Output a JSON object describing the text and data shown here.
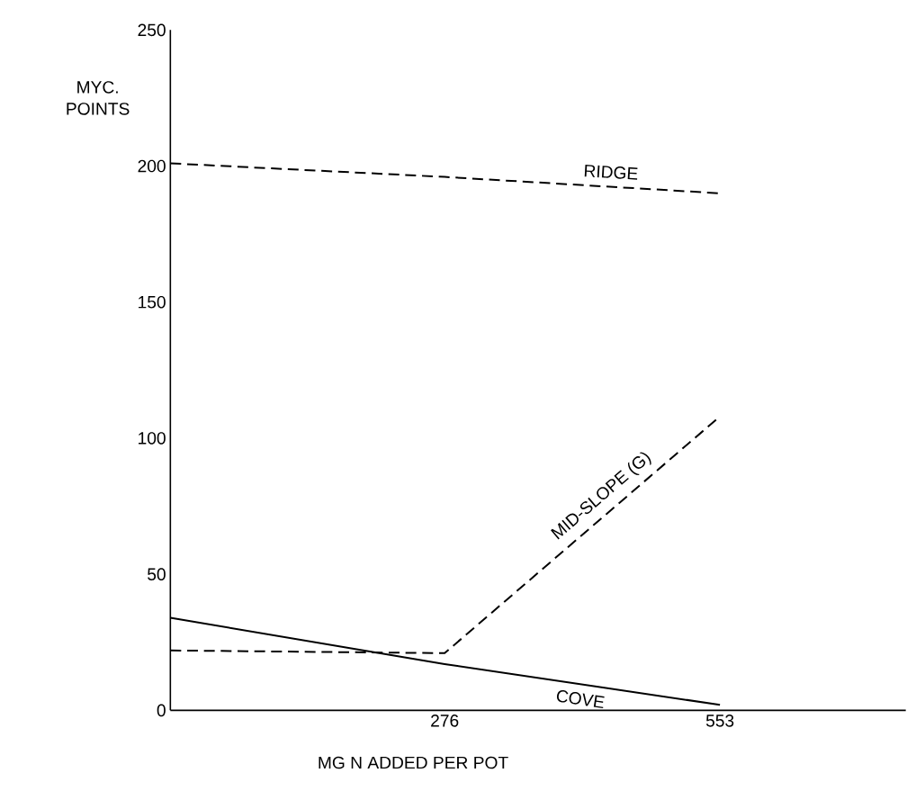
{
  "chart_data": {
    "type": "line",
    "xlabel": "MG  N  ADDED  PER POT",
    "ylabel": "MYC. POINTS",
    "x": [
      0,
      276,
      553
    ],
    "xlim": [
      0,
      740
    ],
    "ylim": [
      0,
      250
    ],
    "xticks": [
      276,
      553
    ],
    "yticks": [
      0,
      50,
      100,
      150,
      200,
      250
    ],
    "grid": false,
    "marker": "none",
    "series": [
      {
        "name": "RIDGE",
        "color": "#000000",
        "line_style": "dashed",
        "values": [
          201,
          196,
          190
        ]
      },
      {
        "name": "MID-SLOPE (G)",
        "color": "#000000",
        "line_style": "dashed",
        "values": [
          22,
          21,
          108
        ]
      },
      {
        "name": "COVE",
        "color": "#000000",
        "line_style": "solid",
        "values": [
          34,
          17,
          2
        ]
      }
    ]
  }
}
